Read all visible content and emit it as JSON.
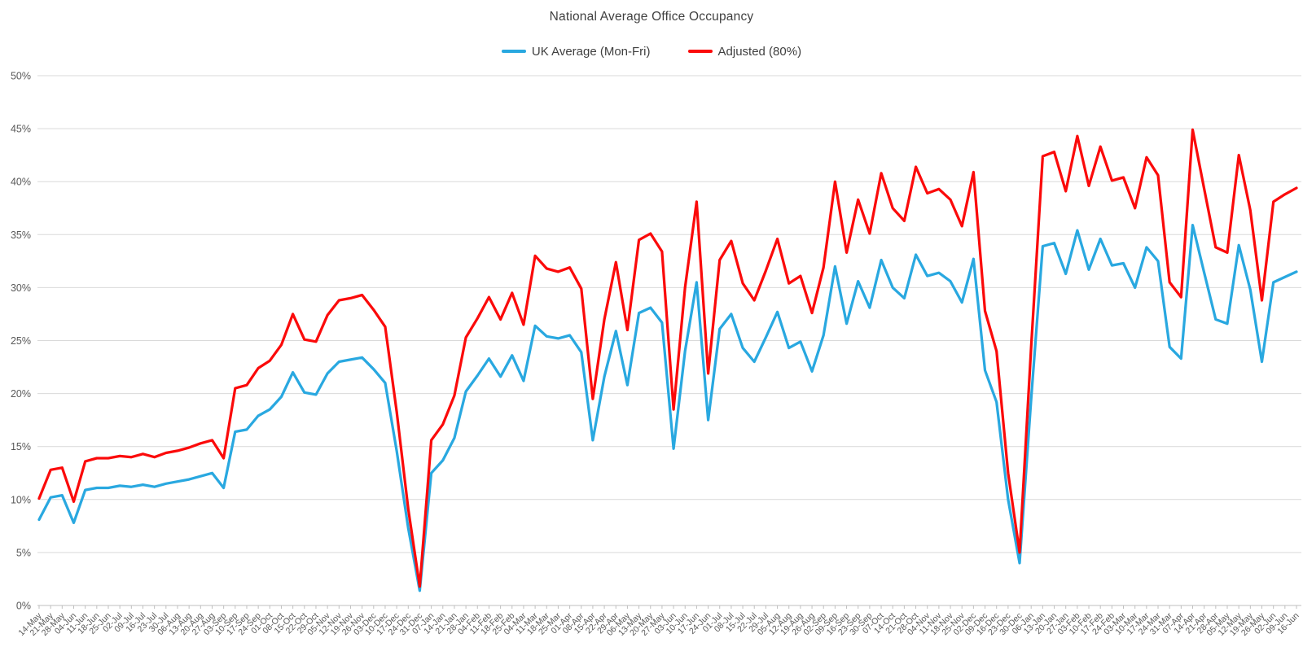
{
  "title": "National Average Office Occupancy",
  "legend": [
    {
      "label": "UK Average (Mon-Fri)",
      "color": "#29a8e0"
    },
    {
      "label": "Adjusted (80%)",
      "color": "#fb0a0a"
    }
  ],
  "chart_data": {
    "type": "line",
    "title": "National Average Office Occupancy",
    "xlabel": "",
    "ylabel": "",
    "ylim": [
      0,
      50
    ],
    "ytick_step": 5,
    "y_tick_labels": [
      "0%",
      "5%",
      "10%",
      "15%",
      "20%",
      "25%",
      "30%",
      "35%",
      "40%",
      "45%",
      "50%"
    ],
    "grid": true,
    "legend_position": "top",
    "categories": [
      "14-May",
      "21-May",
      "28-May",
      "04-Jun",
      "11-Jun",
      "18-Jun",
      "25-Jun",
      "02-Jul",
      "09-Jul",
      "16-Jul",
      "23-Jul",
      "30-Jul",
      "06-Aug",
      "13-Aug",
      "20-Aug",
      "27-Aug",
      "03-Sep",
      "10-Sep",
      "17-Sep",
      "24-Sep",
      "01-Oct",
      "08-Oct",
      "15-Oct",
      "22-Oct",
      "29-Oct",
      "05-Nov",
      "12-Nov",
      "19-Nov",
      "26-Nov",
      "03-Dec",
      "10-Dec",
      "17-Dec",
      "24-Dec",
      "31-Dec",
      "07-Jan",
      "14-Jan",
      "21-Jan",
      "28-Jan",
      "04-Feb",
      "11-Feb",
      "18-Feb",
      "25-Feb",
      "04-Mar",
      "11-Mar",
      "18-Mar",
      "25-Mar",
      "01-Apr",
      "08-Apr",
      "15-Apr",
      "22-Apr",
      "29-Apr",
      "06-May",
      "13-May",
      "20-May",
      "27-May",
      "03-Jun",
      "10-Jun",
      "17-Jun",
      "24-Jun",
      "01-Jul",
      "08-Jul",
      "15-Jul",
      "22-Jul",
      "29-Jul",
      "05-Aug",
      "12-Aug",
      "19-Aug",
      "26-Aug",
      "02-Sep",
      "09-Sep",
      "16-Sep",
      "23-Sep",
      "30-Sep",
      "07-Oct",
      "14-Oct",
      "21-Oct",
      "28-Oct",
      "04-Nov",
      "11-Nov",
      "18-Nov",
      "25-Nov",
      "02-Dec",
      "09-Dec",
      "16-Dec",
      "23-Dec",
      "30-Dec",
      "06-Jan",
      "13-Jan",
      "20-Jan",
      "27-Jan",
      "03-Feb",
      "10-Feb",
      "17-Feb",
      "24-Feb",
      "03-Mar",
      "10-Mar",
      "17-Mar",
      "24-Mar",
      "31-Mar",
      "07-Apr",
      "14-Apr",
      "21-Apr",
      "28-Apr",
      "05-May",
      "12-May",
      "19-May",
      "26-May",
      "02-Jun",
      "09-Jun",
      "16-Jun"
    ],
    "series": [
      {
        "name": "UK Average (Mon-Fri)",
        "color": "#29a8e0",
        "values": [
          8.1,
          10.2,
          10.4,
          7.8,
          10.9,
          11.1,
          11.1,
          11.3,
          11.2,
          11.4,
          11.2,
          11.5,
          11.7,
          11.9,
          12.2,
          12.5,
          11.1,
          16.4,
          16.6,
          17.9,
          18.5,
          19.7,
          22.0,
          20.1,
          19.9,
          21.9,
          23.0,
          23.2,
          23.4,
          22.3,
          21.0,
          14.6,
          7.3,
          1.4,
          12.5,
          13.7,
          15.8,
          20.2,
          21.7,
          23.3,
          21.6,
          23.6,
          21.2,
          26.4,
          25.4,
          25.2,
          25.5,
          23.9,
          15.6,
          21.6,
          25.9,
          20.8,
          27.6,
          28.1,
          26.7,
          14.8,
          24.0,
          30.5,
          17.5,
          26.1,
          27.5,
          24.3,
          23.0,
          25.3,
          27.7,
          24.3,
          24.9,
          22.1,
          25.5,
          32.0,
          26.6,
          30.6,
          28.1,
          32.6,
          30.0,
          29.0,
          33.1,
          31.1,
          31.4,
          30.6,
          28.6,
          32.7,
          22.2,
          19.2,
          10.0,
          4.0,
          19.5,
          33.9,
          34.2,
          31.3,
          35.4,
          31.7,
          34.6,
          32.1,
          32.3,
          30.0,
          33.8,
          32.5,
          24.4,
          23.3,
          35.9,
          31.4,
          27.0,
          26.6,
          34.0,
          29.8,
          23.0,
          30.5,
          31.0,
          31.5
        ]
      },
      {
        "name": "Adjusted (80%)",
        "color": "#fb0a0a",
        "values": [
          10.1,
          12.8,
          13.0,
          9.8,
          13.6,
          13.9,
          13.9,
          14.1,
          14.0,
          14.3,
          14.0,
          14.4,
          14.6,
          14.9,
          15.3,
          15.6,
          13.9,
          20.5,
          20.8,
          22.4,
          23.1,
          24.6,
          27.5,
          25.1,
          24.9,
          27.4,
          28.8,
          29.0,
          29.3,
          27.9,
          26.3,
          18.3,
          9.1,
          1.8,
          15.6,
          17.1,
          19.8,
          25.3,
          27.1,
          29.1,
          27.0,
          29.5,
          26.5,
          33.0,
          31.8,
          31.5,
          31.9,
          29.9,
          19.5,
          27.0,
          32.4,
          26.0,
          34.5,
          35.1,
          33.4,
          18.5,
          30.0,
          38.1,
          21.9,
          32.6,
          34.4,
          30.4,
          28.8,
          31.6,
          34.6,
          30.4,
          31.1,
          27.6,
          31.9,
          40.0,
          33.3,
          38.3,
          35.1,
          40.8,
          37.5,
          36.3,
          41.4,
          38.9,
          39.3,
          38.3,
          35.8,
          40.9,
          27.8,
          24.0,
          12.5,
          5.0,
          24.4,
          42.4,
          42.8,
          39.1,
          44.3,
          39.6,
          43.3,
          40.1,
          40.4,
          37.5,
          42.3,
          40.6,
          30.5,
          29.1,
          44.9,
          39.3,
          33.8,
          33.3,
          42.5,
          37.3,
          28.8,
          38.1,
          38.8,
          39.4
        ]
      }
    ]
  }
}
